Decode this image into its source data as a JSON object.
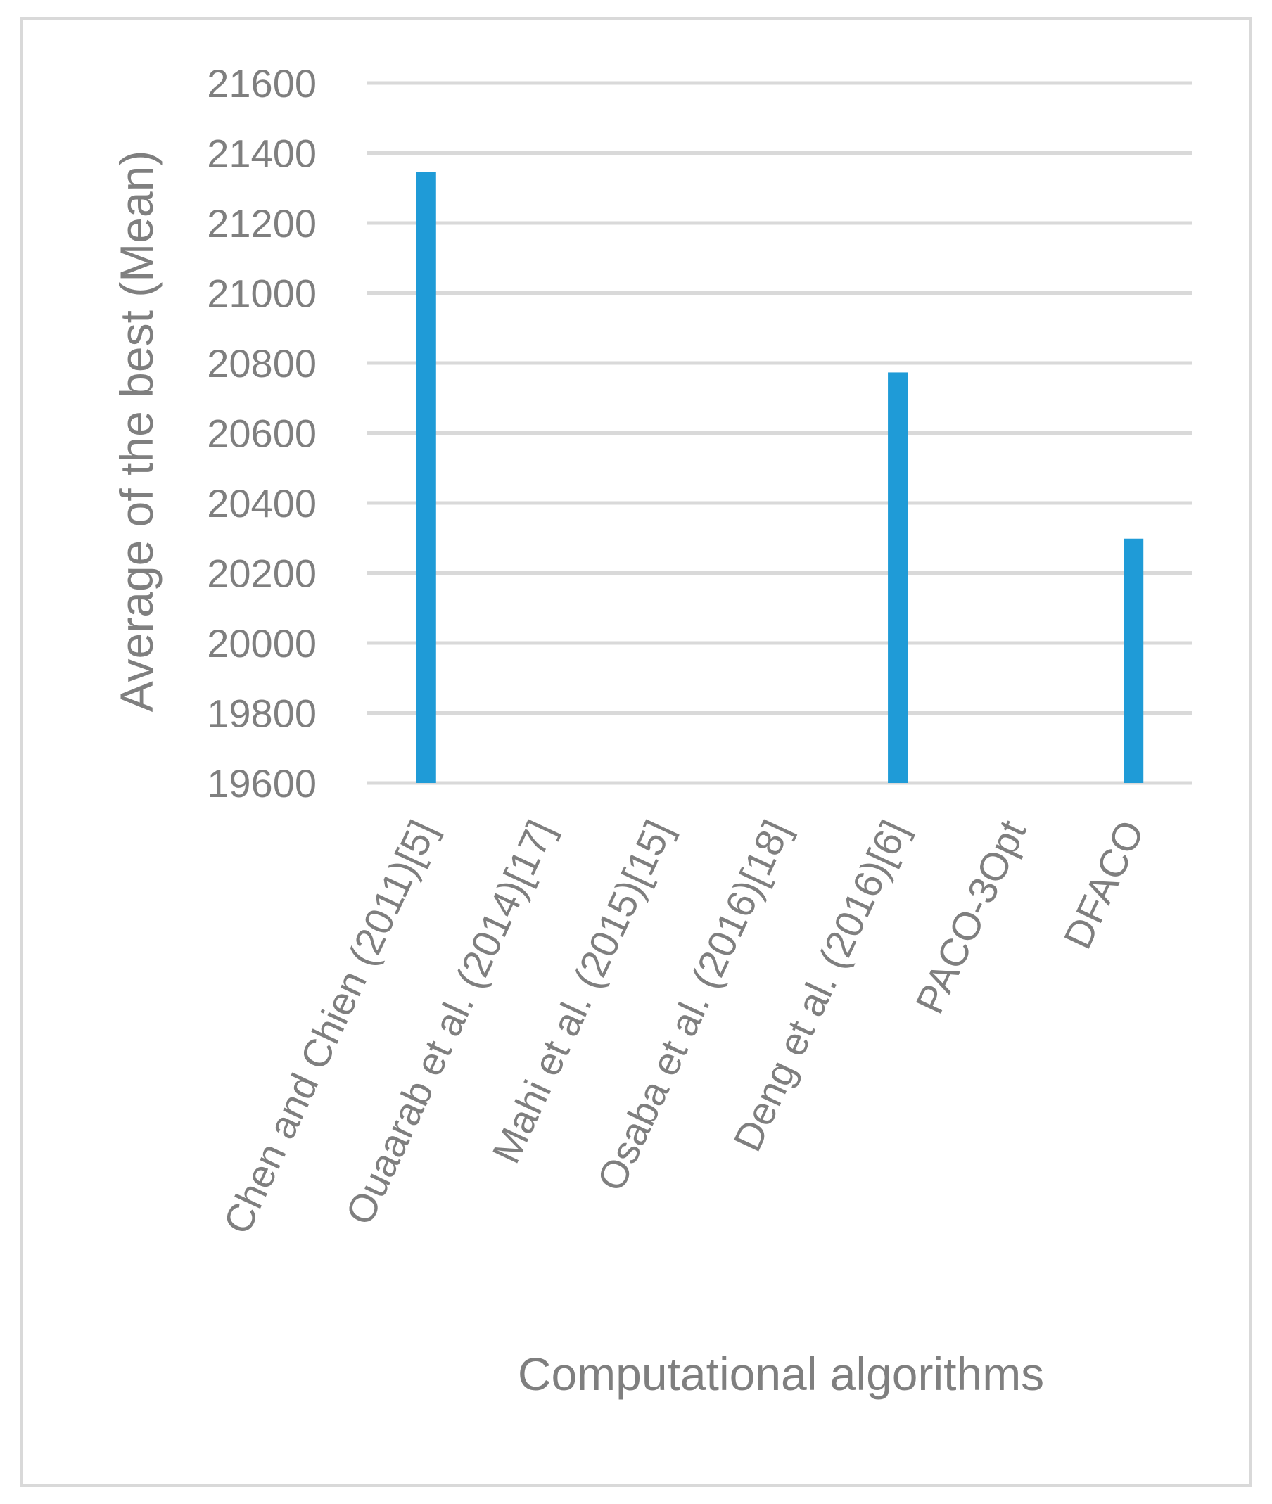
{
  "chart_data": {
    "type": "bar",
    "title": "",
    "xlabel": "Computational algorithms",
    "ylabel": "Average of the best  (Mean)",
    "ylim": [
      19600,
      21600
    ],
    "yticks": [
      19600,
      19800,
      20000,
      20200,
      20400,
      20600,
      20800,
      21000,
      21200,
      21400,
      21600
    ],
    "grid": true,
    "legend": "none",
    "bar_color": "#1f9bd7",
    "grid_color": "#d9d9d9",
    "text_color": "#7f7f7f",
    "categories": [
      "Chen and Chien (2011)[5]",
      "Ouaarab et al. (2014)[17]",
      "Mahi et al. (2015)[15]",
      "Osaba et al. (2016)[18]",
      "Deng et al. (2016)[6]",
      "PACO-3Opt",
      "DFACO"
    ],
    "values": [
      21345,
      null,
      null,
      null,
      20773,
      null,
      20298
    ]
  }
}
